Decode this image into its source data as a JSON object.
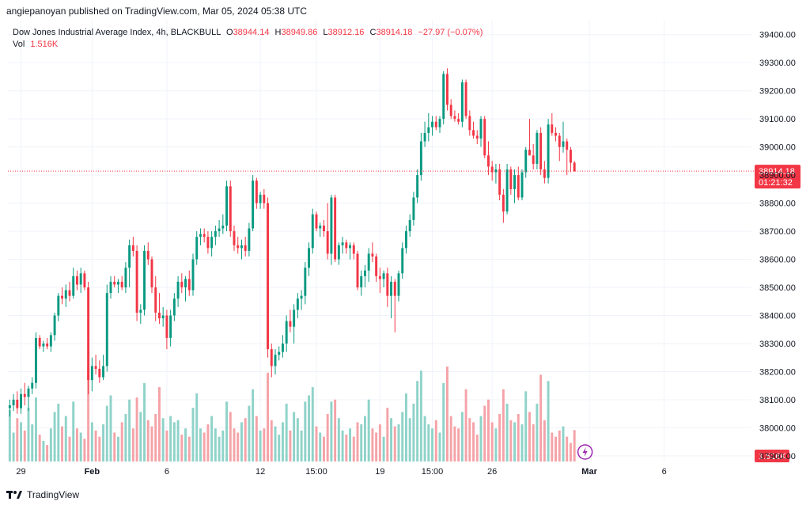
{
  "publisher": "angiepanoyan published on TradingView.com, Mar 05, 2024 05:38 UTC",
  "legend": {
    "title": "Dow Jones Industrial Average Index, 4h, BLACKBULL",
    "o_label": "O",
    "o_value": "38944.14",
    "h_label": "H",
    "h_value": "38949.86",
    "l_label": "L",
    "l_value": "38912.16",
    "c_label": "C",
    "c_value": "38914.18",
    "change": "−27.97 (−0.07%)",
    "vol_label": "Vol",
    "vol_value": "1.516K"
  },
  "footer": {
    "brand": "TradingView"
  },
  "colors": {
    "up": "#089981",
    "down": "#f23645",
    "vol_up": "#8fd3c9",
    "vol_down": "#f5a3a8",
    "grid": "#f0f3fa",
    "axis_text": "#131722",
    "price_line": "#f23645"
  },
  "chart_data": {
    "type": "candlestick",
    "symbol": "Dow Jones Industrial Average Index",
    "interval": "4h",
    "ylim": [
      37880,
      39450
    ],
    "y_ticks": [
      "39400.00",
      "39300.00",
      "39200.00",
      "39100.00",
      "39000.00",
      "38900.00",
      "38800.00",
      "38700.00",
      "38600.00",
      "38500.00",
      "38400.00",
      "38300.00",
      "38200.00",
      "38100.00",
      "38000.00",
      "37900.00"
    ],
    "x_ticks": [
      {
        "label": "29",
        "i": 3
      },
      {
        "label": "Feb",
        "i": 22
      },
      {
        "label": "6",
        "i": 42
      },
      {
        "label": "12",
        "i": 67
      },
      {
        "label": "15:00",
        "i": 82
      },
      {
        "label": "19",
        "i": 99
      },
      {
        "label": "15:00",
        "i": 113
      },
      {
        "label": "26",
        "i": 129
      },
      {
        "label": "Mar",
        "i": 155
      },
      {
        "label": "6",
        "i": 175
      }
    ],
    "last_price": "38914.18",
    "countdown": "01:21:32",
    "last_volume": "1.516K",
    "ohlcv": [
      [
        38070,
        38100,
        38040,
        38080,
        2.5
      ],
      [
        38080,
        38120,
        38060,
        38100,
        1.4
      ],
      [
        38100,
        38130,
        38050,
        38070,
        2.1
      ],
      [
        38070,
        38140,
        38050,
        38120,
        1.9
      ],
      [
        38120,
        38160,
        38080,
        38110,
        1.5
      ],
      [
        38110,
        38150,
        38060,
        38140,
        2.6
      ],
      [
        38140,
        38180,
        38120,
        38160,
        1.8
      ],
      [
        38160,
        38340,
        38140,
        38320,
        3.1
      ],
      [
        38320,
        38330,
        38280,
        38290,
        1.3
      ],
      [
        38290,
        38310,
        38270,
        38300,
        1.0
      ],
      [
        38300,
        38320,
        38280,
        38290,
        0.8
      ],
      [
        38290,
        38340,
        38270,
        38330,
        1.6
      ],
      [
        38330,
        38410,
        38310,
        38400,
        2.4
      ],
      [
        38400,
        38480,
        38380,
        38470,
        2.8
      ],
      [
        38470,
        38500,
        38440,
        38460,
        1.7
      ],
      [
        38460,
        38510,
        38430,
        38490,
        2.2
      ],
      [
        38490,
        38520,
        38450,
        38470,
        1.2
      ],
      [
        38470,
        38570,
        38460,
        38540,
        2.9
      ],
      [
        38540,
        38560,
        38490,
        38510,
        1.6
      ],
      [
        38510,
        38570,
        38480,
        38550,
        1.4
      ],
      [
        38550,
        38560,
        38490,
        38500,
        1.1
      ],
      [
        38500,
        38520,
        38120,
        38170,
        4.6
      ],
      [
        38170,
        38250,
        38130,
        38220,
        1.9
      ],
      [
        38220,
        38260,
        38190,
        38210,
        1.5
      ],
      [
        38210,
        38240,
        38160,
        38180,
        1.2
      ],
      [
        38180,
        38260,
        38170,
        38220,
        1.8
      ],
      [
        38220,
        38510,
        38200,
        38480,
        2.7
      ],
      [
        38480,
        38540,
        38460,
        38520,
        3.2
      ],
      [
        38520,
        38540,
        38500,
        38510,
        1.4
      ],
      [
        38510,
        38530,
        38480,
        38520,
        1.2
      ],
      [
        38520,
        38540,
        38490,
        38500,
        1.9
      ],
      [
        38500,
        38590,
        38480,
        38570,
        2.3
      ],
      [
        38570,
        38670,
        38500,
        38650,
        3.0
      ],
      [
        38650,
        38680,
        38610,
        38630,
        1.6
      ],
      [
        38630,
        38650,
        38380,
        38410,
        3.1
      ],
      [
        38410,
        38440,
        38370,
        38420,
        2.4
      ],
      [
        38420,
        38650,
        38400,
        38630,
        3.8
      ],
      [
        38630,
        38660,
        38580,
        38600,
        2.0
      ],
      [
        38600,
        38610,
        38480,
        38500,
        1.7
      ],
      [
        38500,
        38540,
        38380,
        38410,
        2.3
      ],
      [
        38410,
        38480,
        38370,
        38390,
        3.6
      ],
      [
        38390,
        38430,
        38360,
        38400,
        2.1
      ],
      [
        38400,
        38420,
        38280,
        38320,
        1.5
      ],
      [
        38320,
        38420,
        38290,
        38400,
        2.2
      ],
      [
        38400,
        38480,
        38380,
        38460,
        1.9
      ],
      [
        38460,
        38540,
        38430,
        38520,
        2.0
      ],
      [
        38520,
        38550,
        38480,
        38500,
        1.3
      ],
      [
        38500,
        38540,
        38450,
        38530,
        1.6
      ],
      [
        38530,
        38560,
        38470,
        38490,
        1.2
      ],
      [
        38490,
        38620,
        38470,
        38600,
        2.6
      ],
      [
        38600,
        38700,
        38580,
        38680,
        3.3
      ],
      [
        38680,
        38710,
        38650,
        38690,
        1.6
      ],
      [
        38690,
        38710,
        38660,
        38680,
        1.4
      ],
      [
        38680,
        38700,
        38620,
        38640,
        1.8
      ],
      [
        38640,
        38700,
        38610,
        38680,
        2.2
      ],
      [
        38680,
        38720,
        38650,
        38700,
        1.6
      ],
      [
        38700,
        38740,
        38680,
        38710,
        1.2
      ],
      [
        38710,
        38760,
        38690,
        38720,
        1.5
      ],
      [
        38720,
        38880,
        38700,
        38860,
        2.9
      ],
      [
        38860,
        38880,
        38680,
        38700,
        2.4
      ],
      [
        38700,
        38720,
        38630,
        38650,
        1.6
      ],
      [
        38650,
        38680,
        38620,
        38640,
        1.4
      ],
      [
        38640,
        38670,
        38600,
        38650,
        1.9
      ],
      [
        38650,
        38680,
        38610,
        38630,
        2.1
      ],
      [
        38630,
        38730,
        38610,
        38710,
        2.7
      ],
      [
        38710,
        38900,
        38700,
        38880,
        3.5
      ],
      [
        38880,
        38890,
        38780,
        38800,
        2.2
      ],
      [
        38800,
        38840,
        38780,
        38830,
        1.5
      ],
      [
        38830,
        38850,
        38780,
        38800,
        1.6
      ],
      [
        38800,
        38820,
        38250,
        38280,
        4.3
      ],
      [
        38280,
        38300,
        38180,
        38220,
        2.0
      ],
      [
        38220,
        38280,
        38190,
        38260,
        1.7
      ],
      [
        38260,
        38290,
        38240,
        38270,
        1.3
      ],
      [
        38270,
        38330,
        38250,
        38300,
        1.9
      ],
      [
        38300,
        38400,
        38270,
        38380,
        2.8
      ],
      [
        38380,
        38420,
        38340,
        38360,
        1.5
      ],
      [
        38360,
        38440,
        38300,
        38420,
        2.4
      ],
      [
        38420,
        38480,
        38390,
        38460,
        2.1
      ],
      [
        38460,
        38490,
        38420,
        38470,
        1.5
      ],
      [
        38470,
        38590,
        38440,
        38570,
        2.9
      ],
      [
        38570,
        38660,
        38540,
        38640,
        3.2
      ],
      [
        38640,
        38780,
        38620,
        38760,
        3.6
      ],
      [
        38760,
        38770,
        38700,
        38710,
        1.7
      ],
      [
        38710,
        38730,
        38680,
        38720,
        1.4
      ],
      [
        38720,
        38740,
        38680,
        38700,
        1.2
      ],
      [
        38700,
        38800,
        38600,
        38620,
        2.3
      ],
      [
        38620,
        38830,
        38580,
        38820,
        2.9
      ],
      [
        38820,
        38830,
        38590,
        38600,
        3.0
      ],
      [
        38600,
        38660,
        38580,
        38650,
        2.1
      ],
      [
        38650,
        38680,
        38620,
        38660,
        1.5
      ],
      [
        38660,
        38670,
        38620,
        38640,
        1.3
      ],
      [
        38640,
        38660,
        38600,
        38650,
        1.6
      ],
      [
        38650,
        38660,
        38600,
        38620,
        1.2
      ],
      [
        38620,
        38630,
        38490,
        38500,
        1.9
      ],
      [
        38500,
        38560,
        38470,
        38540,
        1.8
      ],
      [
        38540,
        38580,
        38500,
        38560,
        2.2
      ],
      [
        38560,
        38640,
        38520,
        38620,
        3.0
      ],
      [
        38620,
        38660,
        38590,
        38610,
        1.6
      ],
      [
        38610,
        38620,
        38520,
        38540,
        1.4
      ],
      [
        38540,
        38570,
        38480,
        38530,
        1.8
      ],
      [
        38530,
        38560,
        38500,
        38550,
        1.2
      ],
      [
        38550,
        38570,
        38430,
        38470,
        2.6
      ],
      [
        38470,
        38540,
        38390,
        38520,
        2.1
      ],
      [
        38520,
        38530,
        38340,
        38470,
        1.7
      ],
      [
        38470,
        38560,
        38450,
        38550,
        1.8
      ],
      [
        38550,
        38660,
        38530,
        38640,
        2.4
      ],
      [
        38640,
        38720,
        38620,
        38700,
        3.3
      ],
      [
        38700,
        38760,
        38680,
        38740,
        2.1
      ],
      [
        38740,
        38840,
        38720,
        38820,
        2.8
      ],
      [
        38820,
        38920,
        38800,
        38900,
        3.9
      ],
      [
        38900,
        39050,
        38880,
        39020,
        4.4
      ],
      [
        39020,
        39090,
        39000,
        39050,
        2.2
      ],
      [
        39050,
        39120,
        39020,
        39070,
        1.8
      ],
      [
        39070,
        39110,
        39040,
        39090,
        1.6
      ],
      [
        39090,
        39110,
        39060,
        39070,
        2.0
      ],
      [
        39070,
        39110,
        39050,
        39100,
        1.4
      ],
      [
        39100,
        39270,
        39080,
        39260,
        3.8
      ],
      [
        39260,
        39280,
        39130,
        39150,
        4.6
      ],
      [
        39150,
        39170,
        39100,
        39110,
        2.2
      ],
      [
        39110,
        39130,
        39090,
        39100,
        1.7
      ],
      [
        39100,
        39120,
        39080,
        39090,
        1.6
      ],
      [
        39090,
        39240,
        39070,
        39230,
        2.4
      ],
      [
        39230,
        39240,
        39100,
        39110,
        3.5
      ],
      [
        39110,
        39130,
        39040,
        39060,
        2.1
      ],
      [
        39060,
        39090,
        39030,
        39040,
        1.9
      ],
      [
        39040,
        39060,
        39010,
        39030,
        1.3
      ],
      [
        39030,
        39110,
        39000,
        39100,
        2.2
      ],
      [
        39100,
        39110,
        38960,
        38970,
        2.7
      ],
      [
        38970,
        39020,
        38900,
        38930,
        3.0
      ],
      [
        38930,
        38950,
        38880,
        38910,
        1.9
      ],
      [
        38910,
        38940,
        38870,
        38920,
        1.6
      ],
      [
        38920,
        38940,
        38810,
        38830,
        2.3
      ],
      [
        38830,
        38850,
        38730,
        38770,
        3.5
      ],
      [
        38770,
        38940,
        38760,
        38920,
        2.8
      ],
      [
        38920,
        38930,
        38830,
        38850,
        2.0
      ],
      [
        38850,
        38920,
        38800,
        38900,
        1.9
      ],
      [
        38900,
        38930,
        38810,
        38820,
        2.3
      ],
      [
        38820,
        38920,
        38810,
        38910,
        1.8
      ],
      [
        38910,
        39000,
        38890,
        38990,
        3.4
      ],
      [
        38990,
        39100,
        38970,
        38970,
        2.4
      ],
      [
        38970,
        39010,
        38920,
        38940,
        1.8
      ],
      [
        38940,
        39060,
        38920,
        39050,
        2.8
      ],
      [
        39050,
        39070,
        38900,
        38920,
        4.2
      ],
      [
        38920,
        38950,
        38870,
        38890,
        2.0
      ],
      [
        38890,
        39100,
        38870,
        39080,
        3.9
      ],
      [
        39080,
        39120,
        39040,
        39050,
        1.4
      ],
      [
        39050,
        39070,
        39020,
        39040,
        1.2
      ],
      [
        39040,
        39050,
        38950,
        39000,
        1.5
      ],
      [
        39000,
        39090,
        38980,
        39020,
        1.7
      ],
      [
        39020,
        39030,
        38900,
        38990,
        1.2
      ],
      [
        38990,
        39000,
        38910,
        38944,
        0.9
      ],
      [
        38944,
        38950,
        38912,
        38914,
        1.52
      ]
    ]
  }
}
